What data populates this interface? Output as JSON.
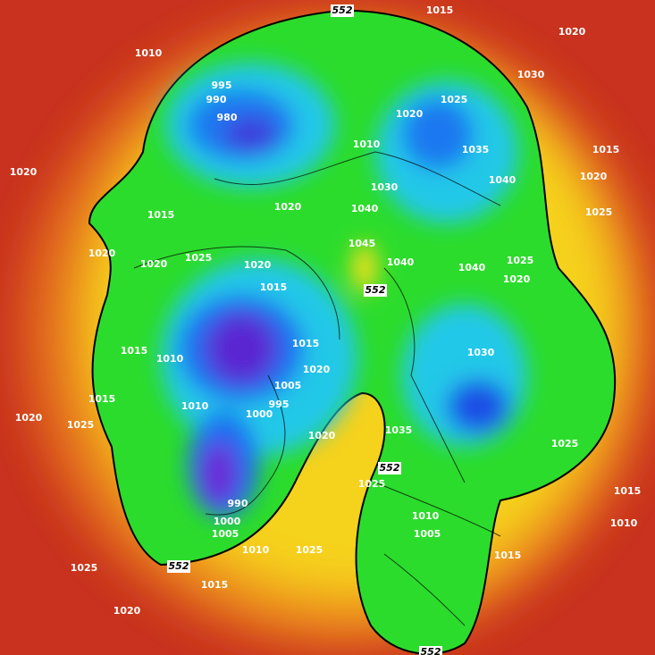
{
  "labels": [
    "552",
    "1015",
    "1020",
    "1010",
    "1030",
    "995",
    "990",
    "980",
    "1020",
    "1025",
    "1010",
    "1035",
    "1015",
    "1020",
    "1020",
    "1040",
    "1030",
    "1025",
    "1015",
    "1020",
    "1040",
    "1045",
    "1020",
    "1020",
    "1025",
    "1020",
    "1040",
    "1025",
    "1040",
    "1020",
    "1015",
    "552",
    "1015",
    "1030",
    "1015",
    "1010",
    "1020",
    "1005",
    "1015",
    "1010",
    "995",
    "1000",
    "1020",
    "1025",
    "1035",
    "1020",
    "1025",
    "552",
    "1025",
    "990",
    "1015",
    "1010",
    "1000",
    "1010",
    "1005",
    "1005",
    "1015",
    "1010",
    "1025",
    "552",
    "1025",
    "1015",
    "1020",
    "552"
  ]
}
